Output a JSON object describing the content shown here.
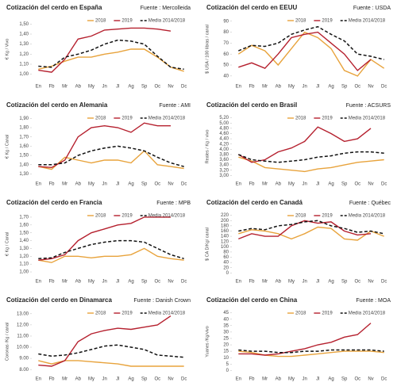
{
  "chart_data": [
    {
      "type": "line",
      "title": "Cotización del cerdo en España",
      "source": "Fuente : Mercolleida",
      "y_label": "€ Kg / Vivo",
      "categories": [
        "En",
        "Fb",
        "Mr",
        "Ab",
        "My",
        "Jn",
        "Jl",
        "Ag",
        "Sp",
        "Oc",
        "Nv",
        "Dc"
      ],
      "ylim": [
        0.95,
        1.55
      ],
      "yticks": [
        {
          "value": 1.0,
          "label": "1,00"
        },
        {
          "value": 1.1,
          "label": "1,10"
        },
        {
          "value": 1.2,
          "label": "1,20"
        },
        {
          "value": 1.3,
          "label": "1,30"
        },
        {
          "value": 1.4,
          "label": "1,40"
        },
        {
          "value": 1.5,
          "label": "1,50"
        }
      ],
      "grid": false,
      "series": [
        {
          "name": "2018",
          "color": "#e8a33c",
          "dashed": false,
          "values": [
            1.05,
            1.08,
            1.13,
            1.17,
            1.17,
            1.2,
            1.22,
            1.25,
            1.25,
            1.17,
            1.07,
            1.03
          ]
        },
        {
          "name": "2019",
          "color": "#b5202e",
          "dashed": false,
          "values": [
            1.04,
            1.02,
            1.15,
            1.35,
            1.38,
            1.44,
            1.45,
            1.46,
            1.46,
            1.45,
            1.43,
            null
          ]
        },
        {
          "name": "Media 2014/2018",
          "color": "#111111",
          "dashed": true,
          "values": [
            1.08,
            1.07,
            1.17,
            1.2,
            1.24,
            1.3,
            1.34,
            1.33,
            1.3,
            1.18,
            1.07,
            1.05
          ]
        }
      ]
    },
    {
      "type": "line",
      "title": "Cotización del cerdo en EEUU",
      "source": "Fuente : USDA",
      "y_label": "$ USA / 100 libras / canal",
      "categories": [
        "En",
        "Fb",
        "Mr",
        "Ab",
        "My",
        "Jn",
        "Jl",
        "Ag",
        "Sp",
        "Oc",
        "Nv",
        "Dc"
      ],
      "ylim": [
        37,
        92
      ],
      "yticks": [
        40,
        50,
        60,
        70,
        80,
        90
      ],
      "grid": false,
      "series": [
        {
          "name": "2018",
          "color": "#e8a33c",
          "dashed": false,
          "values": [
            60,
            68,
            63,
            50,
            65,
            80,
            75,
            65,
            45,
            40,
            55,
            47
          ]
        },
        {
          "name": "2019",
          "color": "#b5202e",
          "dashed": false,
          "values": [
            48,
            52,
            47,
            60,
            75,
            78,
            80,
            70,
            60,
            45,
            55,
            null
          ]
        },
        {
          "name": "Media 2014/2018",
          "color": "#111111",
          "dashed": true,
          "values": [
            63,
            68,
            67,
            70,
            78,
            82,
            85,
            78,
            72,
            60,
            58,
            55
          ]
        }
      ]
    },
    {
      "type": "line",
      "title": "Cotización del cerdo en Alemania",
      "source": "Fuente : AMI",
      "y_label": "€ Kg / Canal",
      "categories": [
        "En",
        "Fb",
        "Mr",
        "Ab",
        "My",
        "Jn",
        "Jl",
        "Ag",
        "Sp",
        "Oc",
        "Nv",
        "Dc"
      ],
      "ylim": [
        1.27,
        1.92
      ],
      "yticks": [
        {
          "value": 1.3,
          "label": "1,30"
        },
        {
          "value": 1.4,
          "label": "1,40"
        },
        {
          "value": 1.5,
          "label": "1,50"
        },
        {
          "value": 1.6,
          "label": "1,60"
        },
        {
          "value": 1.7,
          "label": "1,70"
        },
        {
          "value": 1.8,
          "label": "1,80"
        },
        {
          "value": 1.9,
          "label": "1,90"
        }
      ],
      "grid": false,
      "series": [
        {
          "name": "2018",
          "color": "#e8a33c",
          "dashed": false,
          "values": [
            1.38,
            1.35,
            1.48,
            1.45,
            1.42,
            1.45,
            1.45,
            1.42,
            1.55,
            1.4,
            1.38,
            1.36
          ]
        },
        {
          "name": "2019",
          "color": "#b5202e",
          "dashed": false,
          "values": [
            1.38,
            1.37,
            1.45,
            1.7,
            1.8,
            1.82,
            1.8,
            1.75,
            1.85,
            1.82,
            1.82,
            null
          ]
        },
        {
          "name": "Media 2014/2018",
          "color": "#111111",
          "dashed": true,
          "values": [
            1.4,
            1.4,
            1.42,
            1.5,
            1.55,
            1.58,
            1.6,
            1.58,
            1.55,
            1.48,
            1.42,
            1.38
          ]
        }
      ]
    },
    {
      "type": "line",
      "title": "Cotización del cerdo en Brasil",
      "source": "Fuente : ACSURS",
      "y_label": "Reales / Kg / vivo",
      "categories": [
        "En",
        "Fb",
        "Mr",
        "Ab",
        "My",
        "Jn",
        "Jl",
        "Ag",
        "Sp",
        "Oc",
        "Nv",
        "Dc"
      ],
      "ylim": [
        2.95,
        5.25
      ],
      "yticks": [
        {
          "value": 3.0,
          "label": "3,00"
        },
        {
          "value": 3.2,
          "label": "3,20"
        },
        {
          "value": 3.4,
          "label": "3,40"
        },
        {
          "value": 3.6,
          "label": "3,60"
        },
        {
          "value": 3.8,
          "label": "3,80"
        },
        {
          "value": 4.0,
          "label": "4,00"
        },
        {
          "value": 4.2,
          "label": "4,20"
        },
        {
          "value": 4.4,
          "label": "4,40"
        },
        {
          "value": 4.6,
          "label": "4,60"
        },
        {
          "value": 4.8,
          "label": "4,80"
        },
        {
          "value": 5.0,
          "label": "5,00"
        },
        {
          "value": 5.2,
          "label": "5,20"
        }
      ],
      "grid": false,
      "series": [
        {
          "name": "2018",
          "color": "#e8a33c",
          "dashed": false,
          "values": [
            3.7,
            3.55,
            3.3,
            3.25,
            3.2,
            3.15,
            3.25,
            3.3,
            3.4,
            3.5,
            3.55,
            3.6
          ]
        },
        {
          "name": "2019",
          "color": "#b5202e",
          "dashed": false,
          "values": [
            3.8,
            3.5,
            3.6,
            3.9,
            4.05,
            4.3,
            4.85,
            4.6,
            4.3,
            4.4,
            4.8,
            null
          ]
        },
        {
          "name": "Media 2014/2018",
          "color": "#111111",
          "dashed": true,
          "values": [
            3.8,
            3.6,
            3.55,
            3.5,
            3.55,
            3.6,
            3.7,
            3.75,
            3.85,
            3.9,
            3.9,
            3.85
          ]
        }
      ]
    },
    {
      "type": "line",
      "title": "Cotización del cerdo en Francia",
      "source": "Fuente : MPB",
      "y_label": "€ Kg / Canal",
      "categories": [
        "En",
        "Fb",
        "Mr",
        "Ab",
        "My",
        "Jn",
        "Jl",
        "Ag",
        "Sp",
        "Oc",
        "Nv",
        "Dc"
      ],
      "ylim": [
        0.97,
        1.74
      ],
      "yticks": [
        {
          "value": 1.0,
          "label": "1,00"
        },
        {
          "value": 1.1,
          "label": "1,10"
        },
        {
          "value": 1.2,
          "label": "1,20"
        },
        {
          "value": 1.3,
          "label": "1,30"
        },
        {
          "value": 1.4,
          "label": "1,40"
        },
        {
          "value": 1.5,
          "label": "1,50"
        },
        {
          "value": 1.6,
          "label": "1,60"
        },
        {
          "value": 1.7,
          "label": "1,70"
        }
      ],
      "grid": false,
      "series": [
        {
          "name": "2018",
          "color": "#e8a33c",
          "dashed": false,
          "values": [
            1.15,
            1.12,
            1.2,
            1.2,
            1.18,
            1.2,
            1.2,
            1.22,
            1.3,
            1.2,
            1.17,
            1.15
          ]
        },
        {
          "name": "2019",
          "color": "#b5202e",
          "dashed": false,
          "values": [
            1.15,
            1.17,
            1.22,
            1.4,
            1.5,
            1.55,
            1.6,
            1.62,
            1.7,
            1.7,
            1.7,
            null
          ]
        },
        {
          "name": "Media 2014/2018",
          "color": "#111111",
          "dashed": true,
          "values": [
            1.17,
            1.18,
            1.25,
            1.3,
            1.35,
            1.38,
            1.4,
            1.4,
            1.38,
            1.3,
            1.22,
            1.17
          ]
        }
      ]
    },
    {
      "type": "line",
      "title": "Cotización del cerdo en Canadá",
      "source": "Fuente : Québec",
      "y_label": "$ CA D/Kg/ canal",
      "categories": [
        "En",
        "Fb",
        "Mr",
        "Ab",
        "My",
        "Jn",
        "Jl",
        "Ag",
        "Sp",
        "Oc",
        "Nv",
        "Dc"
      ],
      "ylim": [
        -5,
        225
      ],
      "yticks": [
        0,
        20,
        40,
        60,
        80,
        100,
        120,
        140,
        160,
        180,
        200,
        220
      ],
      "grid": false,
      "series": [
        {
          "name": "2018",
          "color": "#e8a33c",
          "dashed": false,
          "values": [
            150,
            165,
            160,
            150,
            130,
            150,
            175,
            170,
            130,
            125,
            160,
            140
          ]
        },
        {
          "name": "2019",
          "color": "#b5202e",
          "dashed": false,
          "values": [
            130,
            150,
            140,
            140,
            180,
            200,
            190,
            195,
            160,
            145,
            150,
            null
          ]
        },
        {
          "name": "Media 2014/2018",
          "color": "#111111",
          "dashed": true,
          "values": [
            160,
            170,
            165,
            180,
            185,
            195,
            200,
            180,
            170,
            155,
            160,
            150
          ]
        }
      ]
    },
    {
      "type": "line",
      "title": "Cotización del cerdo en Dinamarca",
      "source": "Fuente : Danish Crown",
      "y_label": "Coronas /Kg / canal",
      "categories": [
        "En",
        "Fb",
        "Mr",
        "Ab",
        "My",
        "Jn",
        "Jl",
        "Ag",
        "Sp",
        "Oc",
        "Nv",
        "Dc"
      ],
      "ylim": [
        7.8,
        13.2
      ],
      "yticks": [
        {
          "value": 8,
          "label": "8.00"
        },
        {
          "value": 9,
          "label": "9.00"
        },
        {
          "value": 10,
          "label": "10.00"
        },
        {
          "value": 11,
          "label": "11.00"
        },
        {
          "value": 12,
          "label": "12.00"
        },
        {
          "value": 13,
          "label": "13.00"
        }
      ],
      "grid": false,
      "series": [
        {
          "name": "2018",
          "color": "#e8a33c",
          "dashed": false,
          "values": [
            8.8,
            8.5,
            8.8,
            8.8,
            8.7,
            8.6,
            8.5,
            8.3,
            8.3,
            8.3,
            8.3,
            8.3
          ]
        },
        {
          "name": "2019",
          "color": "#b5202e",
          "dashed": false,
          "values": [
            8.4,
            8.3,
            8.8,
            10.5,
            11.2,
            11.5,
            11.7,
            11.6,
            11.8,
            12.0,
            12.8,
            null
          ]
        },
        {
          "name": "Media 2014/2018",
          "color": "#111111",
          "dashed": true,
          "values": [
            9.4,
            9.2,
            9.3,
            9.5,
            9.8,
            10.1,
            10.2,
            10.0,
            9.8,
            9.3,
            9.2,
            9.1
          ]
        }
      ]
    },
    {
      "type": "line",
      "title": "Cotización del cerdo en China",
      "source": "Fuente : MOA",
      "y_label": "Yuanes /Kg/vivo",
      "categories": [
        "En",
        "Fb",
        "Mr",
        "Ab",
        "My",
        "Jn",
        "Jl",
        "Ag",
        "Sp",
        "Oc",
        "Nv",
        "Dc"
      ],
      "ylim": [
        -1,
        46
      ],
      "yticks": [
        0,
        5,
        10,
        15,
        20,
        25,
        30,
        35,
        40,
        45
      ],
      "grid": false,
      "series": [
        {
          "name": "2018",
          "color": "#e8a33c",
          "dashed": false,
          "values": [
            15,
            14,
            12,
            11,
            11,
            12,
            13,
            14,
            15,
            15,
            15,
            14
          ]
        },
        {
          "name": "2019",
          "color": "#b5202e",
          "dashed": false,
          "values": [
            13,
            13,
            12,
            13,
            15,
            17,
            20,
            22,
            26,
            28,
            37,
            null
          ]
        },
        {
          "name": "Media 2014/2018",
          "color": "#111111",
          "dashed": true,
          "values": [
            16,
            15,
            15,
            14,
            14,
            15,
            15,
            16,
            16,
            16,
            16,
            15
          ]
        }
      ]
    }
  ]
}
